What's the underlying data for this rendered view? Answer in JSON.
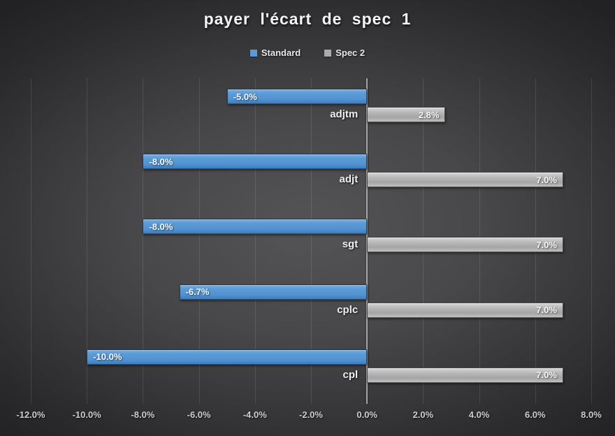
{
  "title": "payer l'écart de spec 1",
  "legend": {
    "items": [
      {
        "label": "Standard",
        "color": "#5b9bd5"
      },
      {
        "label": "Spec 2",
        "color": "#ababab"
      }
    ]
  },
  "colors": {
    "standard_bar": "#5b9bd5",
    "spec2_bar": "#b3b3b3",
    "background_center": "#535356",
    "background_edge": "#232325",
    "gridline": "rgba(255,255,255,0.11)",
    "zero_line": "#b9b9b9",
    "text": "#f4f4f4"
  },
  "chart_data": {
    "type": "bar",
    "orientation": "horizontal",
    "title": "payer l'écart de spec 1",
    "xlabel": "",
    "ylabel": "",
    "grid": true,
    "legend_position": "top",
    "xlim": [
      -12.0,
      8.0
    ],
    "categories": [
      "adjtm",
      "adjt",
      "sgt",
      "cplc",
      "cpl"
    ],
    "series": [
      {
        "name": "Standard",
        "color": "#5b9bd5",
        "values": [
          -5.0,
          -8.0,
          -8.0,
          -6.7,
          -10.0
        ],
        "labels": [
          "-5.0%",
          "-8.0%",
          "-8.0%",
          "-6.7%",
          "-10.0%"
        ]
      },
      {
        "name": "Spec 2",
        "color": "#ababab",
        "values": [
          2.8,
          7.0,
          7.0,
          7.0,
          7.0
        ],
        "labels": [
          "2.8%",
          "7.0%",
          "7.0%",
          "7.0%",
          "7.0%"
        ]
      }
    ],
    "xticks": {
      "values": [
        -12,
        -10,
        -8,
        -6,
        -4,
        -2,
        0,
        2,
        4,
        6,
        8
      ],
      "labels": [
        "-12.0%",
        "-10.0%",
        "-8.0%",
        "-6.0%",
        "-4.0%",
        "-2.0%",
        "0.0%",
        "2.0%",
        "4.0%",
        "6.0%",
        "8.0%"
      ]
    }
  }
}
